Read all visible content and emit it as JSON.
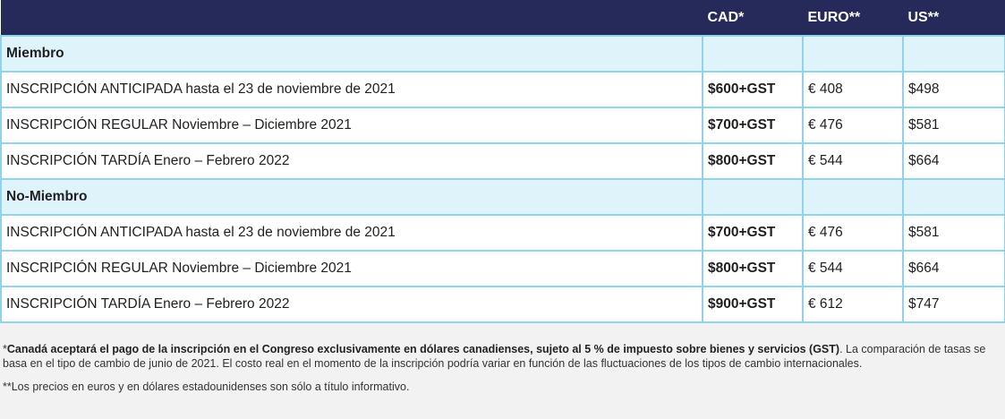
{
  "table": {
    "headers": [
      "",
      "CAD*",
      "EURO**",
      "US**"
    ],
    "sections": [
      {
        "title": "Miembro",
        "rows": [
          {
            "label": "INSCRIPCIÓN ANTICIPADA hasta el 23 de noviembre de 2021",
            "cad": "$600+GST",
            "euro": "€ 408",
            "us": "$498"
          },
          {
            "label": "INSCRIPCIÓN REGULAR Noviembre – Diciembre 2021",
            "cad": "$700+GST",
            "euro": "€ 476",
            "us": "$581"
          },
          {
            "label": "INSCRIPCIÓN TARDÍA Enero – Febrero 2022",
            "cad": "$800+GST",
            "euro": "€ 544",
            "us": "$664"
          }
        ]
      },
      {
        "title": "No-Miembro",
        "rows": [
          {
            "label": "INSCRIPCIÓN ANTICIPADA hasta el 23 de noviembre de 2021",
            "cad": "$700+GST",
            "euro": "€ 476",
            "us": "$581"
          },
          {
            "label": "INSCRIPCIÓN REGULAR Noviembre – Diciembre 2021",
            "cad": "$800+GST",
            "euro": "€ 544",
            "us": "$664"
          },
          {
            "label": "INSCRIPCIÓN TARDÍA Enero – Febrero 2022",
            "cad": "$900+GST",
            "euro": "€ 612",
            "us": "$747"
          }
        ]
      }
    ]
  },
  "notes": {
    "note1_marker": "*",
    "note1_bold": "Canadá aceptará el pago de la inscripción en el Congreso exclusivamente en dólares canadienses, sujeto al 5 % de impuesto sobre bienes y servicios (GST)",
    "note1_rest": ". La comparación de tasas se basa en el tipo de cambio de junio de 2021. El costo real en el momento de la inscripción podría variar en función de las fluctuaciones de los tipos de cambio internacionales.",
    "note2": "**Los precios en euros y en dólares estadounidenses son sólo a título informativo."
  },
  "colors": {
    "header_bg": "#262a5a",
    "border": "#8fd3ec",
    "section_bg": "#dff3fb",
    "page_bg": "#f2f2f2"
  }
}
